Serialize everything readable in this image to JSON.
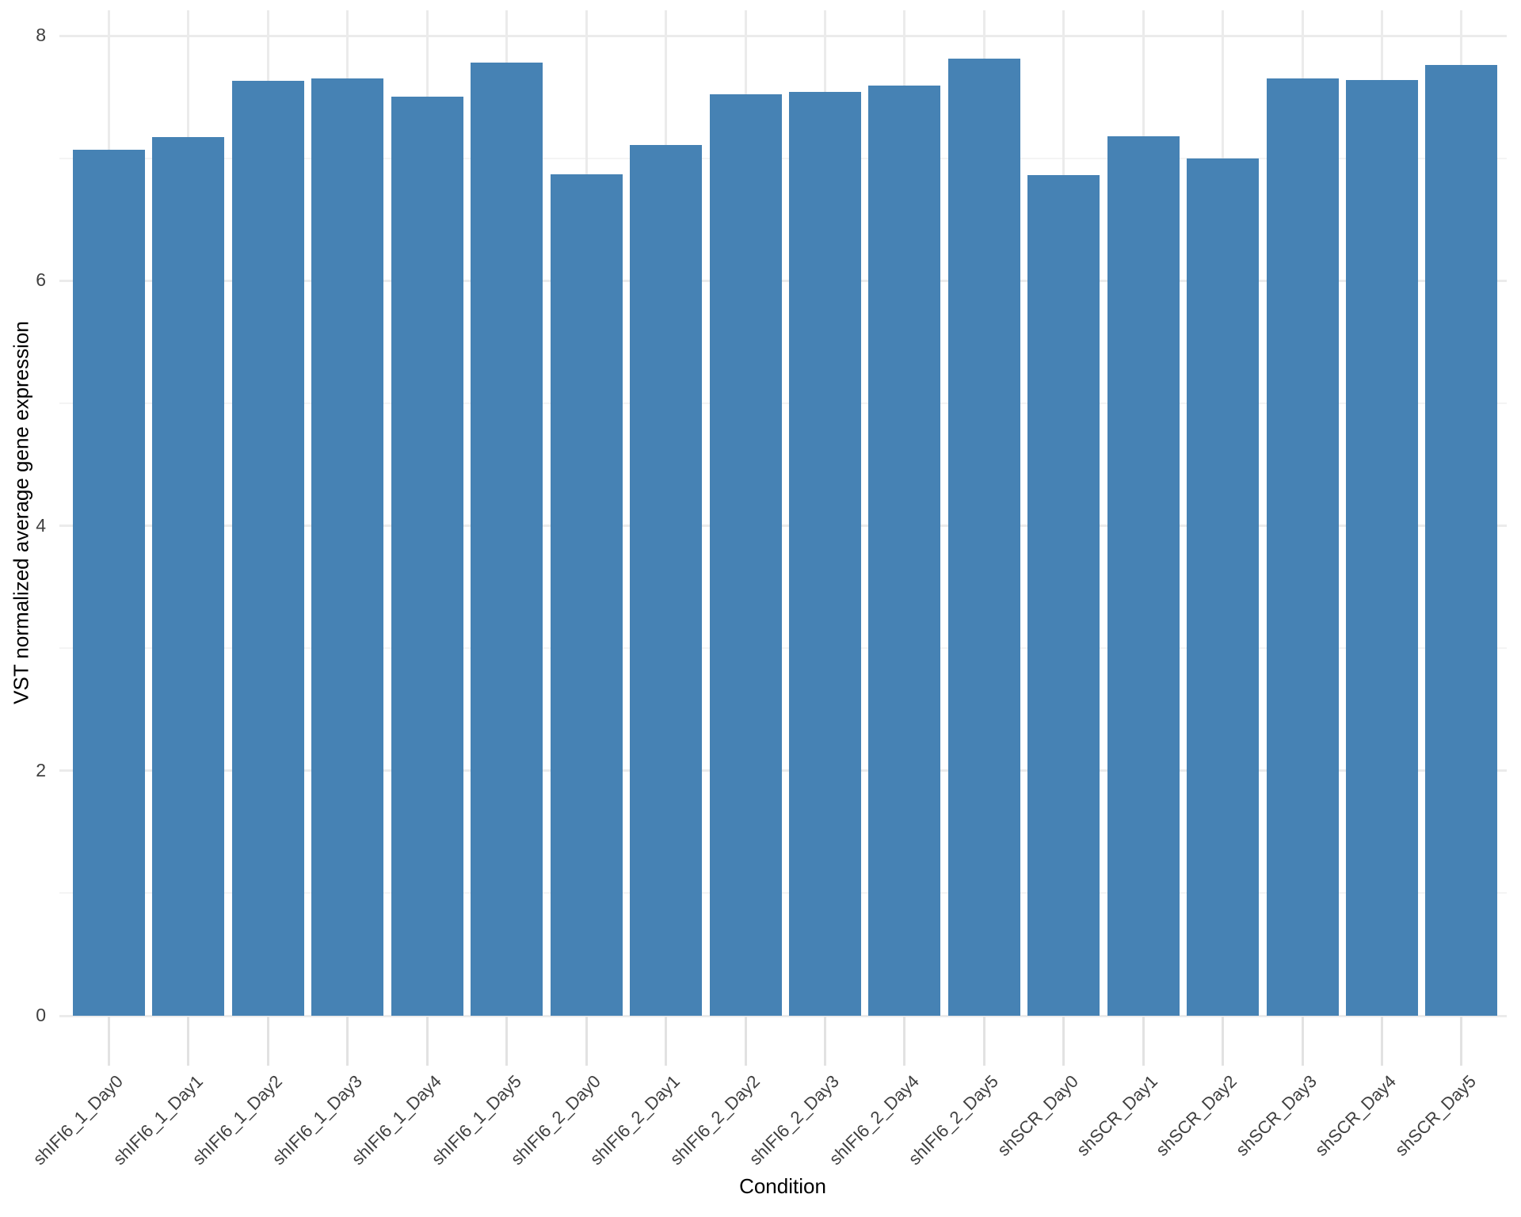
{
  "chart_data": {
    "type": "bar",
    "title": "",
    "xlabel": "Condition",
    "ylabel": "VST normalized average gene expression",
    "categories": [
      "shIFI6_1_Day0",
      "shIFI6_1_Day1",
      "shIFI6_1_Day2",
      "shIFI6_1_Day3",
      "shIFI6_1_Day4",
      "shIFI6_1_Day5",
      "shIFI6_2_Day0",
      "shIFI6_2_Day1",
      "shIFI6_2_Day2",
      "shIFI6_2_Day3",
      "shIFI6_2_Day4",
      "shIFI6_2_Day5",
      "shSCR_Day0",
      "shSCR_Day1",
      "shSCR_Day2",
      "shSCR_Day3",
      "shSCR_Day4",
      "shSCR_Day5"
    ],
    "values": [
      7.07,
      7.17,
      7.63,
      7.65,
      7.5,
      7.78,
      6.87,
      7.11,
      7.52,
      7.54,
      7.59,
      7.81,
      6.86,
      7.18,
      7.0,
      7.65,
      7.64,
      7.76
    ],
    "ylim": [
      0,
      8.21
    ],
    "yticks_major": [
      0,
      2,
      4,
      6,
      8
    ],
    "y_tick_labels": [
      "0",
      "2",
      "4",
      "6",
      "8"
    ],
    "yticks_minor": [
      1,
      3,
      5,
      7
    ],
    "grid": "on",
    "legend": "none",
    "bar_color": "#4682B4",
    "grid_major_color": "#EBEBEB",
    "grid_minor_color": "#F4F4F4",
    "tick_color": "#E2E2E2",
    "axis_text_color": "#404040",
    "axis_title_color": "#000000",
    "background": "#FFFFFF"
  }
}
